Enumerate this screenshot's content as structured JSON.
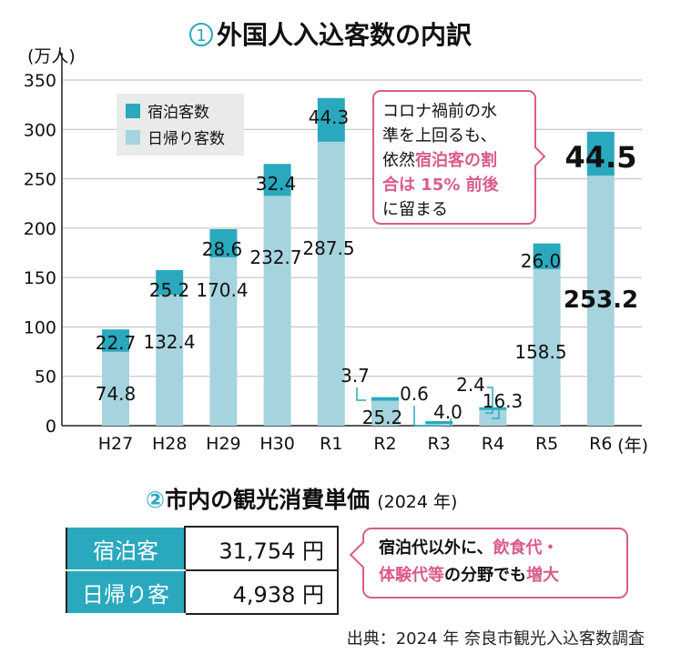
{
  "chart_data": {
    "type": "bar",
    "stacked": true,
    "title_num": "1",
    "title": "外国人入込客数の内訳",
    "ylabel": "(万人)",
    "xlabel_unit": "(年)",
    "ylim": [
      0,
      350
    ],
    "yticks": [
      0,
      50,
      100,
      150,
      200,
      250,
      300,
      350
    ],
    "grid": true,
    "legend_position": "top-left",
    "categories": [
      "H27",
      "H28",
      "H29",
      "H30",
      "R1",
      "R2",
      "R3",
      "R4",
      "R5",
      "R6"
    ],
    "series": [
      {
        "name": "日帰り客数",
        "color": "#a6d4de",
        "values": [
          74.8,
          132.4,
          170.4,
          232.7,
          287.5,
          25.2,
          4.0,
          16.3,
          158.5,
          253.2
        ]
      },
      {
        "name": "宿泊客数",
        "color": "#2aa9be",
        "values": [
          22.7,
          25.2,
          28.6,
          32.4,
          44.3,
          3.7,
          0.6,
          2.4,
          26.0,
          44.5
        ]
      }
    ],
    "value_labels": {
      "day": [
        "74.8",
        "132.4",
        "170.4",
        "232.7",
        "287.5",
        "25.2",
        "4.0",
        "16.3",
        "158.5",
        "253.2"
      ],
      "stay": [
        "22.7",
        "25.2",
        "28.6",
        "32.4",
        "44.3",
        "3.7",
        "0.6",
        "2.4",
        "26.0",
        "44.5"
      ]
    },
    "annotation": {
      "lines": [
        "コロナ禍前の水",
        "準を上回るも、"
      ],
      "line3a": "依然",
      "line3b": "宿泊客の割",
      "line4": "合は 15% 前後",
      "line5": "に留まる",
      "color": "#d85c8a"
    }
  },
  "section2": {
    "num": "2",
    "title": "市内の観光消費単価",
    "year": "(2024 年)",
    "rows": [
      {
        "label": "宿泊客",
        "value": "31,754 円"
      },
      {
        "label": "日帰り客",
        "value": "4,938 円"
      }
    ],
    "callout": {
      "a": "宿泊代以外に、",
      "b": "飲食代・",
      "c": "体験代等",
      "d": "の分野でも",
      "e": "増大"
    }
  },
  "source": "出典：2024 年 奈良市観光入込客数調査"
}
